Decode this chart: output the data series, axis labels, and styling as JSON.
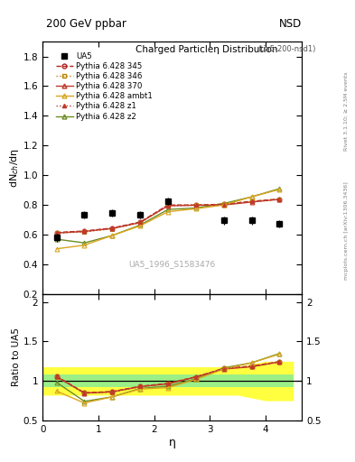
{
  "title_top": "200 GeV ppbar",
  "title_right": "NSD",
  "main_title": "Charged Particleη Distribution",
  "main_subtitle": "(ua5-200-nsd1)",
  "watermark": "UA5_1996_S1583476",
  "right_label": "mcplots.cern.ch [arXiv:1306.3436]",
  "rivet_label": "Rivet 3.1.10; ≥ 2.5M events",
  "xlabel": "η",
  "ylabel_main": "dN$_{ch}$/dη",
  "ylabel_ratio": "Ratio to UA5",
  "ua5_eta": [
    0.25,
    0.75,
    1.25,
    1.75,
    2.25,
    3.25,
    3.75,
    4.25
  ],
  "ua5_vals": [
    0.58,
    0.735,
    0.745,
    0.735,
    0.825,
    0.695,
    0.695,
    0.675
  ],
  "ua5_err": [
    0.025,
    0.025,
    0.025,
    0.025,
    0.025,
    0.025,
    0.025,
    0.025
  ],
  "eta_pts": [
    0.25,
    0.75,
    1.25,
    1.75,
    2.25,
    2.75,
    3.25,
    3.75,
    4.25
  ],
  "p345_vals": [
    0.615,
    0.625,
    0.645,
    0.685,
    0.8,
    0.8,
    0.805,
    0.825,
    0.84
  ],
  "p346_vals": [
    0.61,
    0.62,
    0.64,
    0.68,
    0.795,
    0.8,
    0.805,
    0.825,
    0.84
  ],
  "p370_vals": [
    0.612,
    0.622,
    0.642,
    0.682,
    0.795,
    0.798,
    0.8,
    0.82,
    0.838
  ],
  "pambt1_vals": [
    0.505,
    0.53,
    0.595,
    0.66,
    0.755,
    0.775,
    0.8,
    0.855,
    0.905
  ],
  "pz1_vals": [
    0.612,
    0.622,
    0.643,
    0.683,
    0.797,
    0.799,
    0.803,
    0.823,
    0.838
  ],
  "pz2_vals": [
    0.57,
    0.545,
    0.595,
    0.665,
    0.77,
    0.78,
    0.81,
    0.855,
    0.91
  ],
  "color_345": "#b22222",
  "color_346": "#b8860b",
  "color_370": "#c0392b",
  "color_ambt1": "#daa520",
  "color_z1": "#c0392b",
  "color_z2": "#6b8e23",
  "band_eta": [
    0.0,
    0.5,
    1.0,
    1.5,
    2.0,
    2.5,
    3.0,
    3.5,
    4.0,
    4.5
  ],
  "band_yellow_lo": [
    0.82,
    0.82,
    0.82,
    0.82,
    0.82,
    0.82,
    0.82,
    0.82,
    0.75,
    0.75
  ],
  "band_yellow_hi": [
    1.18,
    1.18,
    1.18,
    1.18,
    1.18,
    1.18,
    1.18,
    1.18,
    1.25,
    1.25
  ],
  "band_green_lo": [
    0.92,
    0.92,
    0.92,
    0.92,
    0.92,
    0.92,
    0.92,
    0.92,
    0.92,
    0.92
  ],
  "band_green_hi": [
    1.08,
    1.08,
    1.08,
    1.08,
    1.08,
    1.08,
    1.08,
    1.08,
    1.08,
    1.08
  ],
  "ylim_main": [
    0.2,
    1.9
  ],
  "ylim_ratio": [
    0.5,
    2.1
  ],
  "xlim": [
    0.0,
    4.65
  ],
  "yticks_main": [
    0.2,
    0.4,
    0.6,
    0.8,
    1.0,
    1.2,
    1.4,
    1.6,
    1.8
  ],
  "yticks_ratio": [
    0.5,
    1.0,
    1.5,
    2.0
  ],
  "xticks": [
    0,
    1,
    2,
    3,
    4
  ]
}
